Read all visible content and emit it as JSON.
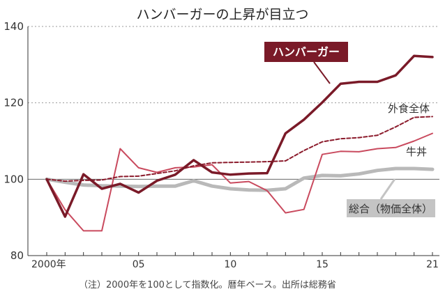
{
  "chart_data": {
    "type": "line",
    "title": "ハンバーガーの上昇が目立つ",
    "note": "（注）2000年を100として指数化。暦年ベース。出所は総務省",
    "x": [
      2000,
      2001,
      2002,
      2003,
      2004,
      2005,
      2006,
      2007,
      2008,
      2009,
      2010,
      2011,
      2012,
      2013,
      2014,
      2015,
      2016,
      2017,
      2018,
      2019,
      2020,
      2021
    ],
    "x_tick_labels": [
      "2000年",
      "05",
      "10",
      "15",
      "21"
    ],
    "x_tick_values": [
      2000,
      2005,
      2010,
      2015,
      2021
    ],
    "ylim": [
      80,
      140
    ],
    "y_ticks": [
      80,
      100,
      120,
      140
    ],
    "series": [
      {
        "name": "総合（物価全体）",
        "color": "#b9b9b9",
        "style": "solid-thick",
        "values": [
          100,
          99.2,
          98.5,
          98.3,
          98.2,
          98.1,
          98.2,
          98.2,
          99.6,
          98.2,
          97.5,
          97.2,
          97.1,
          97.5,
          100.3,
          101.0,
          100.9,
          101.4,
          102.3,
          102.8,
          102.8,
          102.6
        ]
      },
      {
        "name": "牛丼",
        "color": "#c94a5e",
        "style": "solid",
        "values": [
          100,
          92,
          86.5,
          86.5,
          108,
          103,
          101.8,
          103,
          103.2,
          103.8,
          99,
          99.4,
          97,
          91.2,
          92.1,
          106.5,
          107.3,
          107.2,
          108,
          108.3,
          110,
          112
        ]
      },
      {
        "name": "外食全体",
        "color": "#8b1a2b",
        "style": "dashed",
        "values": [
          100,
          99.5,
          99.7,
          99.8,
          100.7,
          100.8,
          101.5,
          102.2,
          103.5,
          104.3,
          104.4,
          104.5,
          104.6,
          104.8,
          107.5,
          109.8,
          110.6,
          110.9,
          111.5,
          113.7,
          116.2,
          116.4
        ]
      },
      {
        "name": "ハンバーガー",
        "color": "#7a1a28",
        "style": "solid-thick",
        "values": [
          100,
          90.2,
          101.3,
          97.5,
          98.8,
          96.5,
          99.6,
          101.2,
          105,
          101.8,
          101.2,
          101.5,
          101.6,
          112,
          115.6,
          120.1,
          125,
          125.5,
          125.5,
          127.2,
          132.3,
          132
        ]
      }
    ],
    "callouts": {
      "hamburger": "ハンバーガー",
      "gaishoku": "外食全体",
      "gyudon": "牛丼",
      "sogo": "総合（物価全体）"
    }
  }
}
